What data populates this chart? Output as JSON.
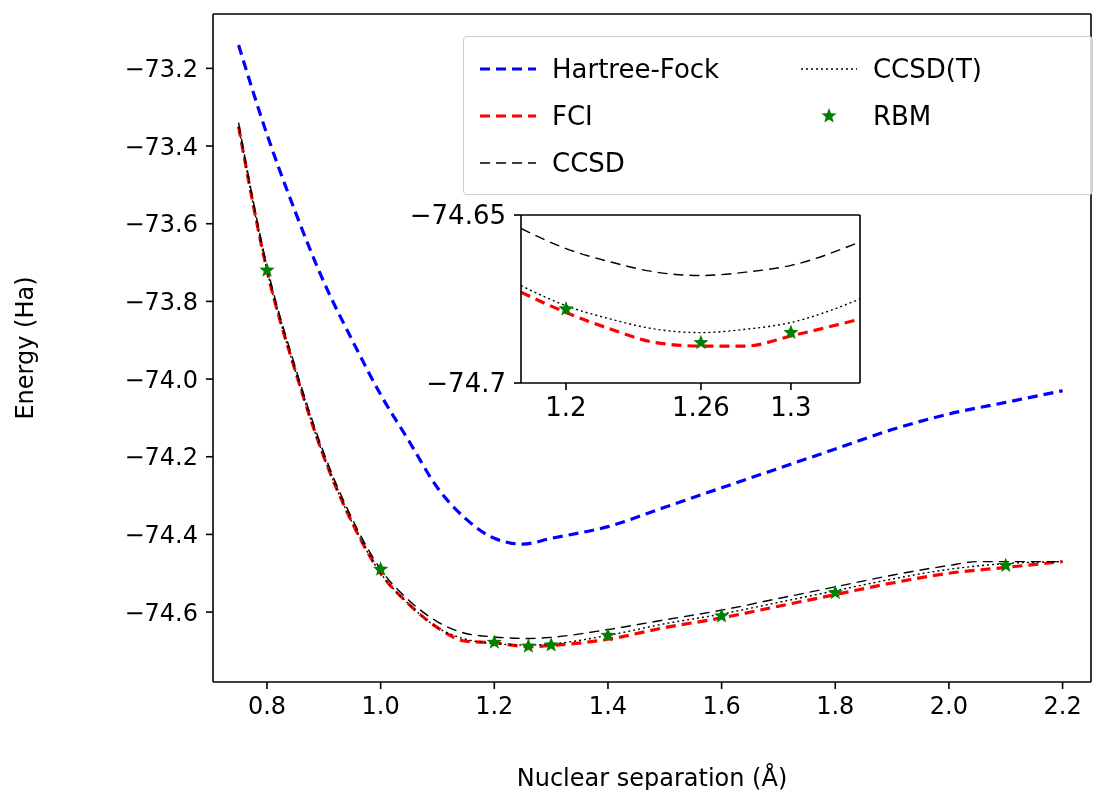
{
  "chart_data": [
    {
      "type": "line",
      "xlabel": "Nuclear separation (Å)",
      "ylabel": "Energy (Ha)",
      "legend": "top right",
      "grid": false,
      "xlim": [
        0.705,
        2.25
      ],
      "ylim": [
        -74.78,
        -73.06
      ],
      "xticks": [
        {
          "value": 0.8,
          "label": "0.8"
        },
        {
          "value": 1.0,
          "label": "1.0"
        },
        {
          "value": 1.2,
          "label": "1.2"
        },
        {
          "value": 1.4,
          "label": "1.4"
        },
        {
          "value": 1.6,
          "label": "1.6"
        },
        {
          "value": 1.8,
          "label": "1.8"
        },
        {
          "value": 2.0,
          "label": "2.0"
        },
        {
          "value": 2.2,
          "label": "2.2"
        }
      ],
      "yticks": [
        {
          "value": -73.2,
          "label": "−73.2"
        },
        {
          "value": -73.4,
          "label": "−73.4"
        },
        {
          "value": -73.6,
          "label": "−73.6"
        },
        {
          "value": -73.8,
          "label": "−73.8"
        },
        {
          "value": -74.0,
          "label": "−74.0"
        },
        {
          "value": -74.2,
          "label": "−74.2"
        },
        {
          "value": -74.4,
          "label": "−74.4"
        },
        {
          "value": -74.6,
          "label": "−74.6"
        }
      ],
      "series": [
        {
          "name": "Hartree-Fock",
          "type": "line",
          "line_style": "dashed",
          "marker": "none",
          "color": "#0000ff",
          "x": [
            0.75,
            0.8,
            0.85,
            0.9,
            0.95,
            1.0,
            1.05,
            1.1,
            1.15,
            1.2,
            1.25,
            1.3,
            1.4,
            1.5,
            1.6,
            1.7,
            1.8,
            1.9,
            2.0,
            2.1,
            2.2
          ],
          "values": [
            -73.14,
            -73.37,
            -73.57,
            -73.75,
            -73.9,
            -74.04,
            -74.16,
            -74.28,
            -74.36,
            -74.41,
            -74.425,
            -74.41,
            -74.38,
            -74.33,
            -74.28,
            -74.23,
            -74.18,
            -74.13,
            -74.09,
            -74.06,
            -74.03
          ]
        },
        {
          "name": "FCI",
          "type": "line",
          "line_style": "dashed",
          "marker": "none",
          "color": "#ff0000",
          "x": [
            0.75,
            0.8,
            0.85,
            0.9,
            0.95,
            1.0,
            1.05,
            1.1,
            1.15,
            1.2,
            1.26,
            1.3,
            1.4,
            1.5,
            1.6,
            1.7,
            1.8,
            1.9,
            2.0,
            2.1,
            2.2
          ],
          "values": [
            -73.35,
            -73.72,
            -73.98,
            -74.2,
            -74.37,
            -74.5,
            -74.58,
            -74.64,
            -74.675,
            -74.679,
            -74.689,
            -74.686,
            -74.67,
            -74.64,
            -74.615,
            -74.585,
            -74.555,
            -74.525,
            -74.5,
            -74.485,
            -74.47
          ]
        },
        {
          "name": "CCSD",
          "type": "line",
          "line_style": "dashed",
          "marker": "none",
          "color": "#000000",
          "x": [
            0.75,
            0.8,
            0.85,
            0.9,
            0.95,
            1.0,
            1.05,
            1.1,
            1.15,
            1.2,
            1.26,
            1.3,
            1.4,
            1.5,
            1.6,
            1.7,
            1.8,
            1.9,
            2.0,
            2.05,
            2.2
          ],
          "values": [
            -73.34,
            -73.71,
            -73.97,
            -74.19,
            -74.36,
            -74.49,
            -74.57,
            -74.625,
            -74.655,
            -74.664,
            -74.668,
            -74.665,
            -74.645,
            -74.62,
            -74.595,
            -74.565,
            -74.535,
            -74.505,
            -74.48,
            -74.47,
            -74.47
          ]
        },
        {
          "name": "CCSD(T)",
          "type": "line",
          "line_style": "dotted",
          "marker": "none",
          "color": "#000000",
          "x": [
            0.75,
            0.8,
            0.85,
            0.9,
            0.95,
            1.0,
            1.05,
            1.1,
            1.15,
            1.2,
            1.26,
            1.3,
            1.4,
            1.5,
            1.6,
            1.7,
            1.8,
            1.9,
            2.0,
            2.1,
            2.2
          ],
          "values": [
            -73.35,
            -73.72,
            -73.98,
            -74.2,
            -74.37,
            -74.5,
            -74.58,
            -74.64,
            -74.67,
            -74.681,
            -74.685,
            -74.682,
            -74.66,
            -74.63,
            -74.605,
            -74.575,
            -74.545,
            -74.515,
            -74.49,
            -74.475,
            -74.47
          ]
        },
        {
          "name": "RBM",
          "type": "scatter",
          "marker": "star",
          "color": "#008000",
          "x": [
            0.8,
            1.0,
            1.2,
            1.26,
            1.3,
            1.4,
            1.6,
            1.8,
            2.1
          ],
          "values": [
            -73.72,
            -74.49,
            -74.678,
            -74.688,
            -74.685,
            -74.66,
            -74.61,
            -74.55,
            -74.48
          ]
        }
      ]
    },
    {
      "type": "line",
      "grid": false,
      "xlim": [
        1.18,
        1.3307
      ],
      "ylim": [
        -74.7,
        -74.65
      ],
      "xticks": [
        1.2,
        1.26,
        1.3
      ],
      "yticks": [
        {
          "value": -74.65,
          "label": "−74.65"
        },
        {
          "value": -74.7,
          "label": "−74.7"
        }
      ],
      "series": [
        {
          "type": "line",
          "line_style": "dashed",
          "marker": "none",
          "color": "#000000",
          "x": [
            1.18,
            1.2,
            1.22,
            1.24,
            1.26,
            1.28,
            1.3,
            1.3307
          ],
          "values": [
            -74.654,
            -74.66,
            -74.664,
            -74.667,
            -74.668,
            -74.667,
            -74.665,
            -74.658
          ]
        },
        {
          "type": "line",
          "line_style": "dotted",
          "marker": "none",
          "color": "#000000",
          "x": [
            1.18,
            1.2,
            1.22,
            1.24,
            1.26,
            1.28,
            1.3,
            1.3307
          ],
          "values": [
            -74.671,
            -74.677,
            -74.681,
            -74.684,
            -74.685,
            -74.684,
            -74.682,
            -74.675
          ]
        },
        {
          "type": "line",
          "line_style": "dashed",
          "marker": "none",
          "color": "#ff0000",
          "x": [
            1.18,
            1.2,
            1.22,
            1.24,
            1.26,
            1.28,
            1.3,
            1.3307
          ],
          "values": [
            -74.673,
            -74.679,
            -74.684,
            -74.688,
            -74.689,
            -74.689,
            -74.686,
            -74.681
          ]
        },
        {
          "type": "scatter",
          "marker": "star",
          "color": "#008000",
          "x": [
            1.2,
            1.26,
            1.3
          ],
          "values": [
            -74.678,
            -74.688,
            -74.685
          ]
        }
      ]
    }
  ]
}
